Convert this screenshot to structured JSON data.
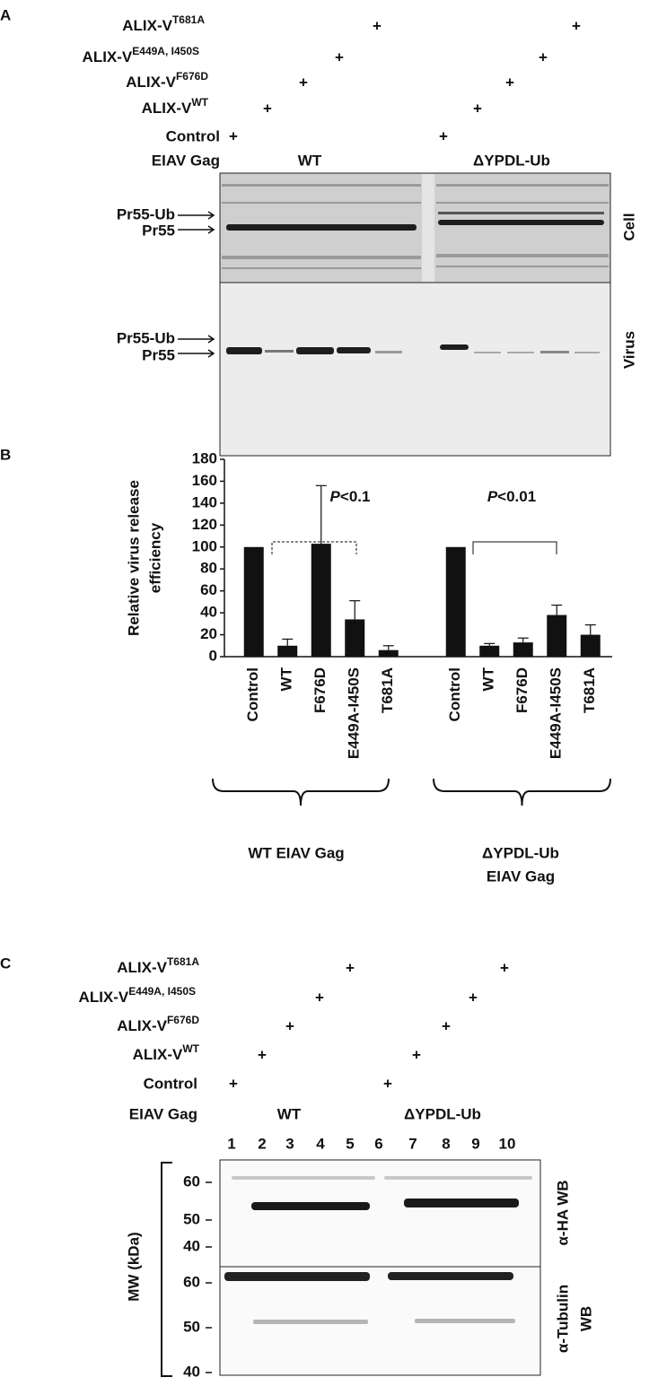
{
  "panel_a": {
    "label": "A",
    "rows": [
      {
        "name": "ALIX-V",
        "sup": "T681A"
      },
      {
        "name": "ALIX-V",
        "sup": "E449A, I450S"
      },
      {
        "name": "ALIX-V",
        "sup": "F676D"
      },
      {
        "name": "ALIX-V",
        "sup": "WT"
      }
    ],
    "control": "Control",
    "gag": "EIAV Gag",
    "groups": [
      "WT",
      "ΔYPDL-Ub"
    ],
    "plus": "+",
    "bands": [
      "Pr55-Ub",
      "Pr55"
    ],
    "blots": [
      "Cell",
      "Virus"
    ]
  },
  "chart_data": {
    "type": "bar",
    "panel_label": "B",
    "y_label_lines": [
      "Relative virus release",
      "efficiency"
    ],
    "categories": [
      "Control",
      "WT",
      "F676D",
      "E449A-I450S",
      "T681A",
      null,
      "Control",
      "WT",
      "F676D",
      "E449A-I450S",
      "T681A"
    ],
    "values": [
      100,
      10,
      103,
      34,
      6,
      null,
      100,
      10,
      13,
      38,
      20
    ],
    "errors": [
      0,
      6,
      53,
      17,
      4,
      null,
      0,
      2,
      4,
      9,
      9
    ],
    "color": "#111111",
    "ylim": [
      0,
      180
    ],
    "yticks": [
      0,
      20,
      40,
      60,
      80,
      100,
      120,
      140,
      160,
      180
    ],
    "annotations": [
      {
        "italic": "P",
        "rest": "<0.1"
      },
      {
        "italic": "P",
        "rest": "<0.01"
      }
    ],
    "groups": [
      [
        "WT EIAV Gag"
      ],
      [
        "ΔYPDL-Ub",
        "EIAV Gag"
      ]
    ]
  },
  "panel_c": {
    "label": "C",
    "rows": [
      {
        "name": "ALIX-V",
        "sup": "T681A"
      },
      {
        "name": "ALIX-V",
        "sup": "E449A, I450S"
      },
      {
        "name": "ALIX-V",
        "sup": "F676D"
      },
      {
        "name": "ALIX-V",
        "sup": "WT"
      }
    ],
    "control": "Control",
    "gag": "EIAV Gag",
    "groups": [
      "WT",
      "ΔYPDL-Ub"
    ],
    "plus": "+",
    "lanes": [
      1,
      2,
      3,
      4,
      5,
      6,
      7,
      8,
      9,
      10
    ],
    "mw_label": "MW (kDa)",
    "blots": [
      {
        "label": [
          "α-HA WB"
        ],
        "ticks": [
          60,
          50,
          40
        ]
      },
      {
        "label": [
          "α-Tubulin",
          "WB"
        ],
        "ticks": [
          60,
          50,
          40
        ]
      }
    ]
  }
}
